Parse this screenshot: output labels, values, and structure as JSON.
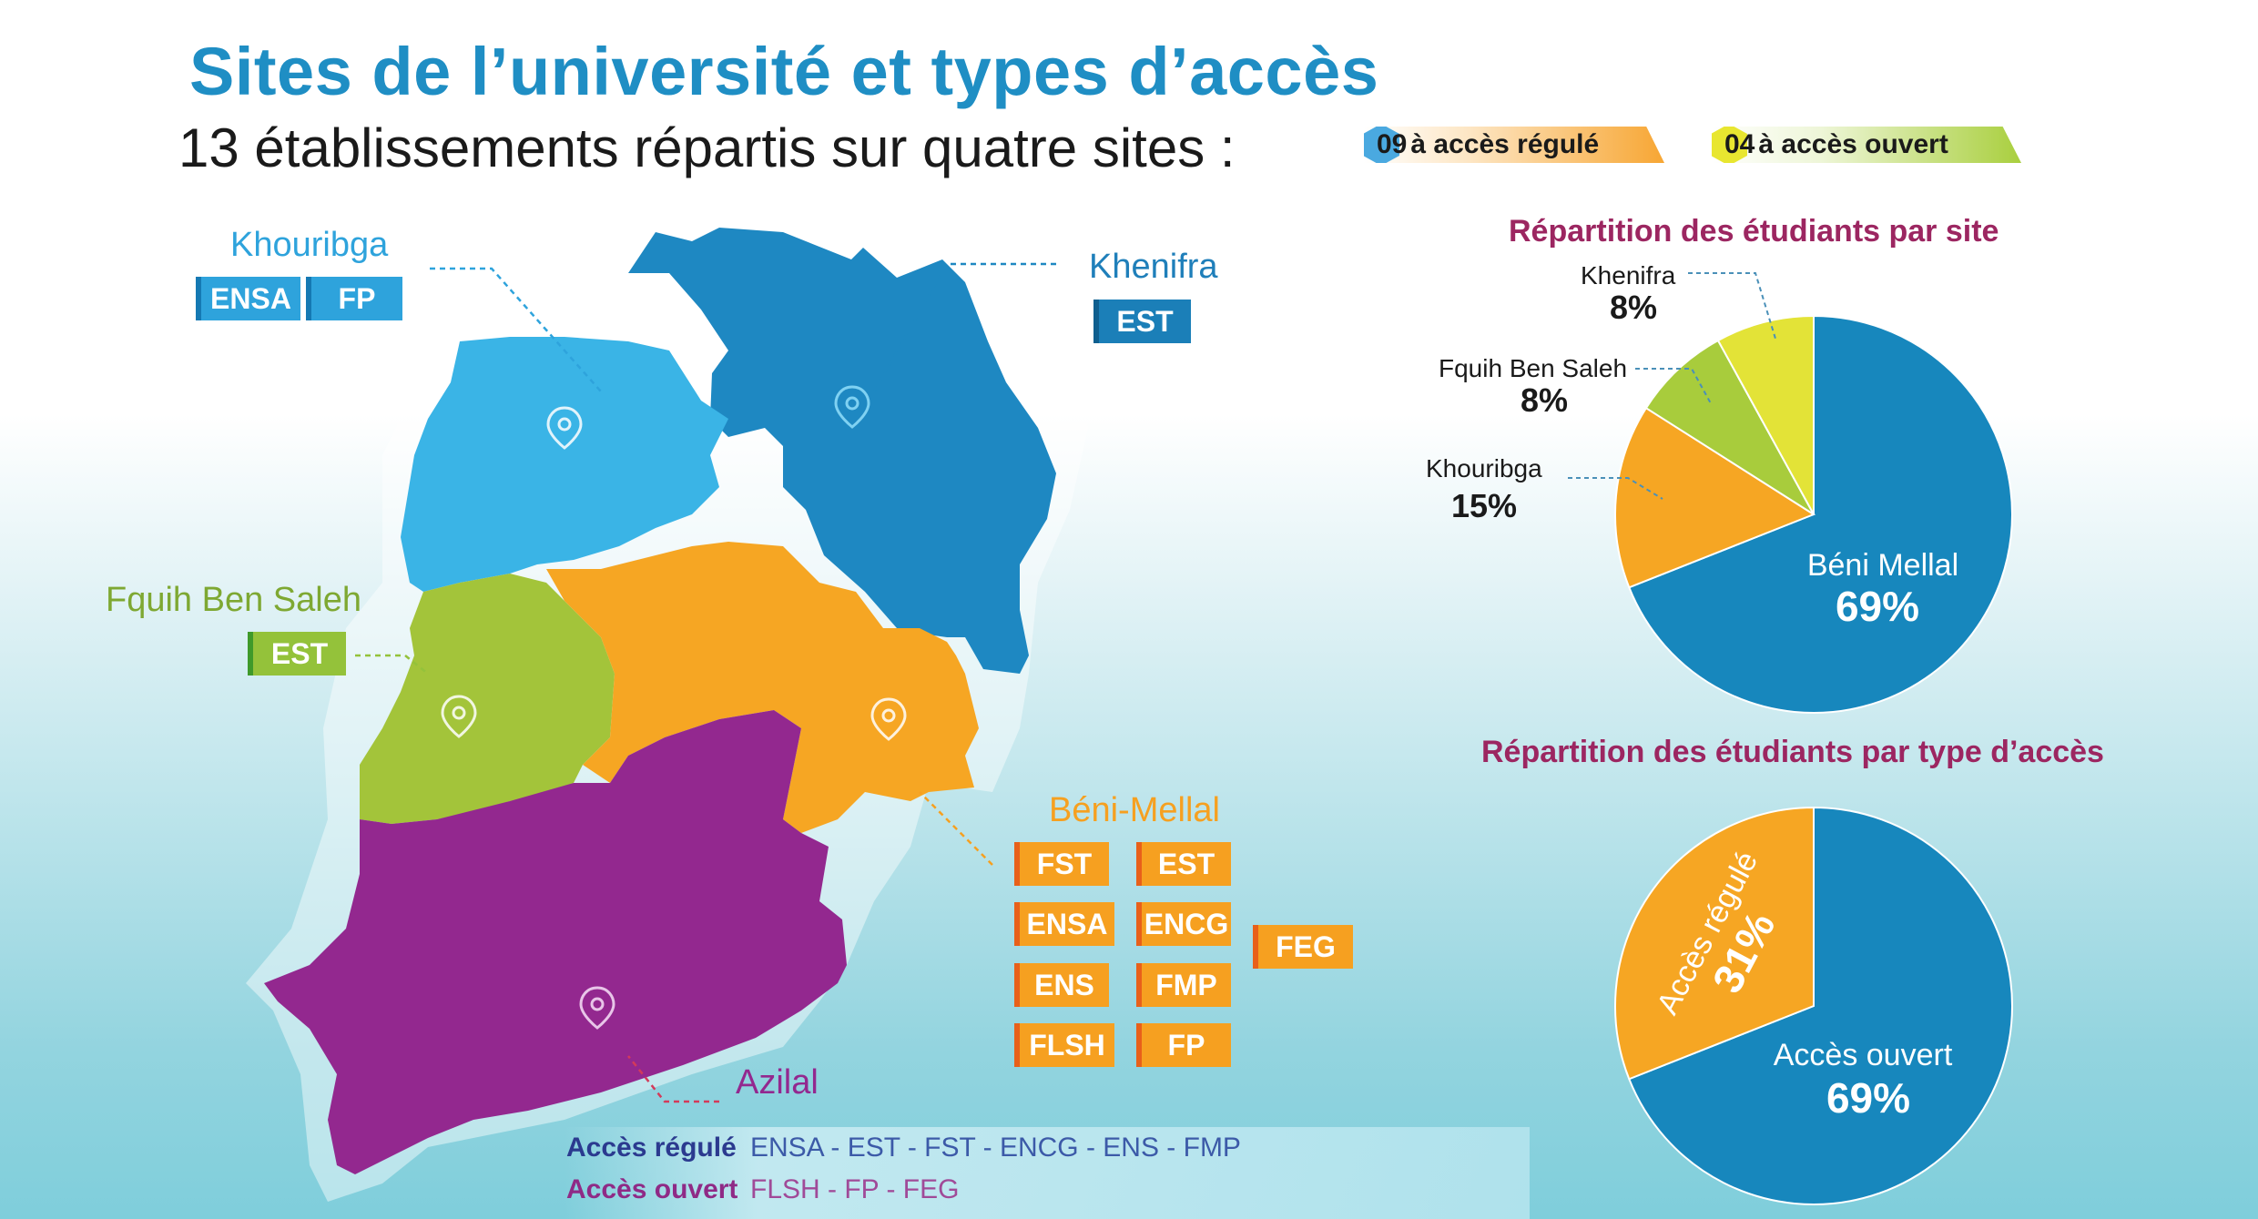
{
  "header": {
    "title": "Sites de l’université et types d’accès",
    "subtitle": "13 établissements répartis sur quatre sites :"
  },
  "legend": {
    "regulated": {
      "count": "09",
      "label": "à accès régulé",
      "color": "#f7a633"
    },
    "open": {
      "count": "04",
      "label": "à accès ouvert",
      "color": "#a9cf3e"
    }
  },
  "map": {
    "sites": {
      "khouribga": {
        "name": "Khouribga",
        "color": "#3ab4e6",
        "establishments": [
          "ENSA",
          "FP"
        ]
      },
      "khenifra": {
        "name": "Khenifra",
        "color": "#1e88c2",
        "establishments": [
          "EST"
        ]
      },
      "fquih": {
        "name": "Fquih Ben Saleh",
        "color": "#a3c43a",
        "establishments": [
          "EST"
        ]
      },
      "beni": {
        "name": "Béni-Mellal",
        "color": "#f6a623",
        "establishments": [
          "FST",
          "EST",
          "ENSA",
          "ENCG",
          "ENS",
          "FMP",
          "FLSH",
          "FP",
          "FEG"
        ]
      },
      "azilal": {
        "name": "Azilal",
        "color": "#93288f",
        "establishments": []
      }
    }
  },
  "access_types": {
    "regulated": {
      "label": "Accès régulé",
      "list": "ENSA - EST - FST - ENCG - ENS - FMP",
      "color": "#2b3a8f"
    },
    "open": {
      "label": "Accès ouvert",
      "list": "FLSH - FP - FEG",
      "color": "#8f2a86"
    }
  },
  "chart_data": [
    {
      "type": "pie",
      "title": "Répartition des étudiants par site",
      "categories": [
        "Béni Mellal",
        "Khouribga",
        "Fquih Ben Saleh",
        "Khenifra"
      ],
      "values": [
        69,
        15,
        8,
        8
      ],
      "labels": [
        "69%",
        "15%",
        "8%",
        "8%"
      ],
      "colors": [
        "#1787bd",
        "#f6a623",
        "#a8cc3c",
        "#e3e337"
      ]
    },
    {
      "type": "pie",
      "title": "Répartition des étudiants par type d’accès",
      "categories": [
        "Accès ouvert",
        "Accès régulé"
      ],
      "values": [
        69,
        31
      ],
      "labels": [
        "69%",
        "31%"
      ],
      "colors": [
        "#1787bd",
        "#f6a623"
      ]
    }
  ]
}
